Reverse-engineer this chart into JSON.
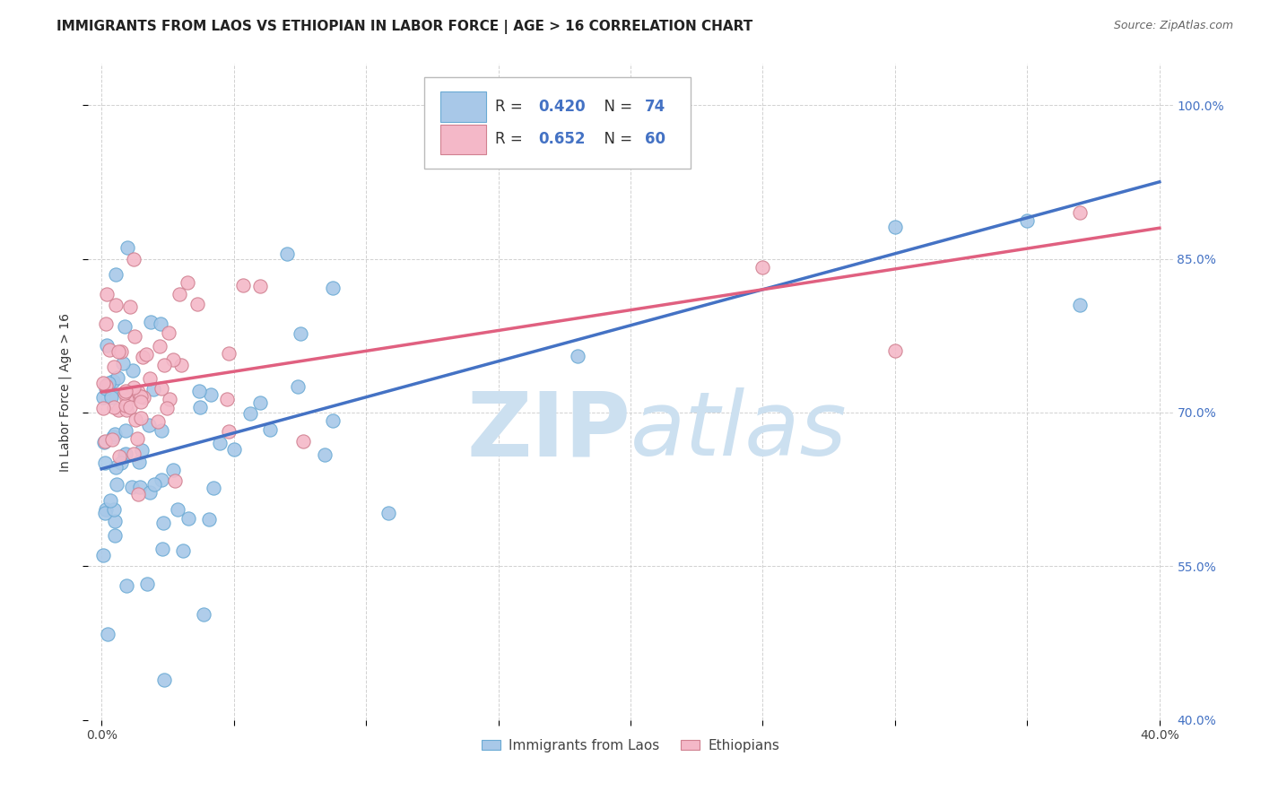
{
  "title": "IMMIGRANTS FROM LAOS VS ETHIOPIAN IN LABOR FORCE | AGE > 16 CORRELATION CHART",
  "source": "Source: ZipAtlas.com",
  "ylabel": "In Labor Force | Age > 16",
  "xlim": [
    -0.005,
    0.405
  ],
  "ylim": [
    0.4,
    1.04
  ],
  "yticks": [
    0.4,
    0.55,
    0.7,
    0.85,
    1.0
  ],
  "ytick_labels": [
    "40.0%",
    "55.0%",
    "70.0%",
    "85.0%",
    "100.0%"
  ],
  "xticks": [
    0.0,
    0.05,
    0.1,
    0.15,
    0.2,
    0.25,
    0.3,
    0.35,
    0.4
  ],
  "xtick_labels": [
    "0.0%",
    "",
    "",
    "",
    "",
    "",
    "",
    "",
    "40.0%"
  ],
  "laos_R": 0.42,
  "laos_N": 74,
  "eth_R": 0.652,
  "eth_N": 60,
  "laos_color": "#a8c8e8",
  "laos_line_color": "#4472c4",
  "eth_color": "#f4b8c8",
  "eth_line_color": "#e06080",
  "laos_edge_color": "#6aaad4",
  "eth_edge_color": "#d08090",
  "watermark_color": "#cce0f0",
  "background_color": "#ffffff",
  "grid_color": "#cccccc",
  "title_fontsize": 11,
  "axis_label_fontsize": 10,
  "tick_fontsize": 10,
  "right_tick_color": "#4472c4",
  "laos_line_y0": 0.645,
  "laos_line_y1": 0.925,
  "eth_line_y0": 0.72,
  "eth_line_y1": 0.88
}
